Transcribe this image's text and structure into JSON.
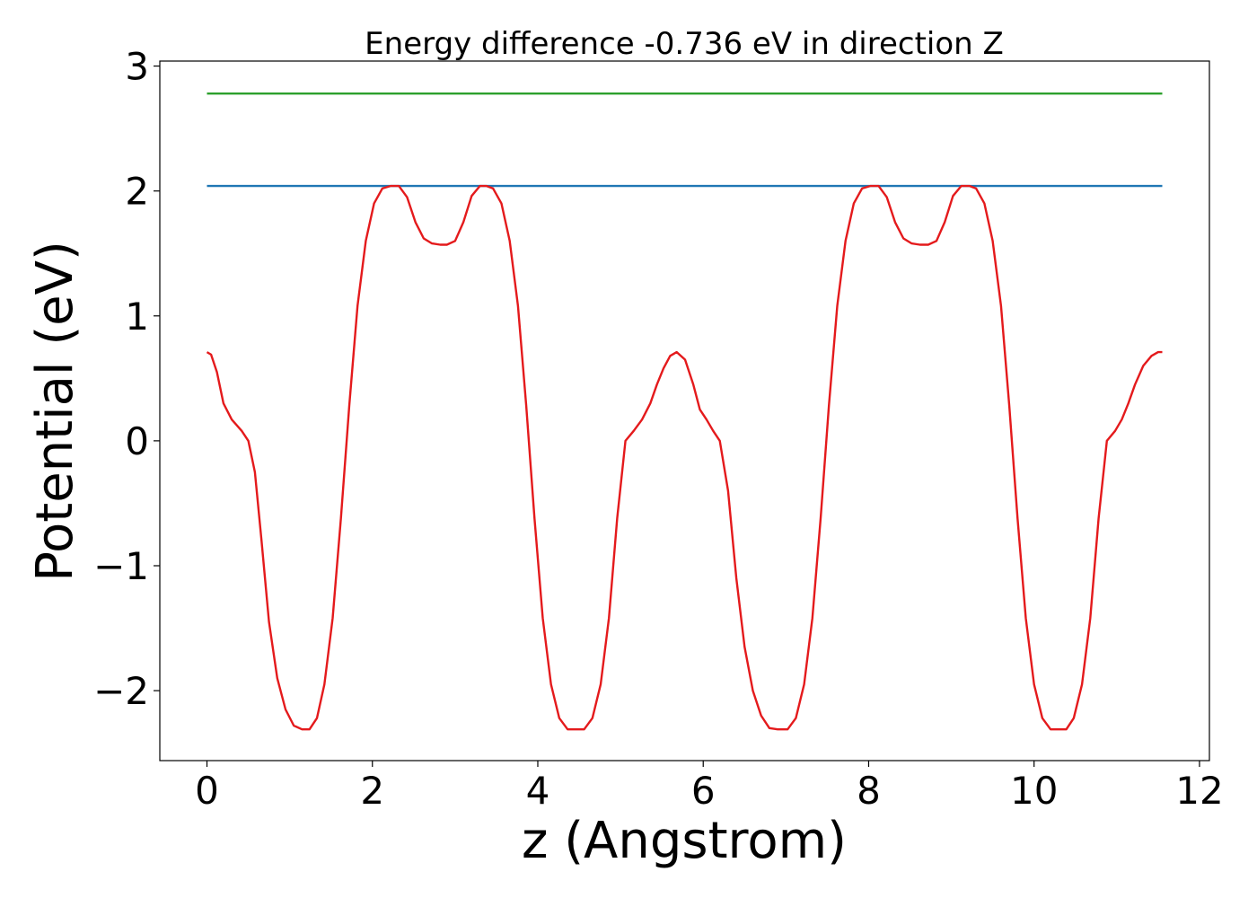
{
  "chart_data": {
    "type": "line",
    "title": "Energy difference -0.736 eV in direction Z",
    "xlabel": "z (Angstrom)",
    "ylabel": "Potential (eV)",
    "xlim": [
      -0.57,
      12.12
    ],
    "ylim": [
      -2.56,
      3.04
    ],
    "xticks": [
      0,
      2,
      4,
      6,
      8,
      10,
      12
    ],
    "xtick_labels": [
      "0",
      "2",
      "4",
      "6",
      "8",
      "10",
      "12"
    ],
    "yticks": [
      -2,
      -1,
      0,
      1,
      2,
      3
    ],
    "ytick_labels": [
      "−2",
      "−1",
      "0",
      "1",
      "2",
      "3"
    ],
    "grid": false,
    "series": [
      {
        "color": "#2ca02c",
        "x": [
          0,
          11.55
        ],
        "y": [
          2.78,
          2.78
        ]
      },
      {
        "color": "#1f77b4",
        "x": [
          0,
          11.55
        ],
        "y": [
          2.04,
          2.04
        ]
      },
      {
        "color": "#e41a1c",
        "x": [
          0,
          0.05,
          0.12,
          0.2,
          0.3,
          0.42,
          0.5,
          0.58,
          0.66,
          0.75,
          0.85,
          0.95,
          1.05,
          1.15,
          1.24,
          1.33,
          1.42,
          1.52,
          1.62,
          1.72,
          1.82,
          1.92,
          2.02,
          2.12,
          2.22,
          2.32,
          2.42,
          2.52,
          2.62,
          2.72,
          2.82,
          2.9,
          3.0,
          3.1,
          3.2,
          3.3,
          3.38,
          3.46,
          3.56,
          3.66,
          3.76,
          3.86,
          3.96,
          4.06,
          4.16,
          4.26,
          4.36,
          4.46,
          4.56,
          4.66,
          4.76,
          4.86,
          4.96,
          5.06,
          5.16,
          5.26,
          5.36,
          5.44,
          5.52,
          5.6,
          5.68,
          5.78,
          5.88,
          5.96,
          6.04,
          6.12,
          6.2,
          6.3,
          6.4,
          6.5,
          6.6,
          6.7,
          6.8,
          6.9,
          7.02,
          7.12,
          7.22,
          7.32,
          7.42,
          7.52,
          7.62,
          7.72,
          7.82,
          7.92,
          8.02,
          8.12,
          8.22,
          8.32,
          8.42,
          8.52,
          8.62,
          8.72,
          8.82,
          8.92,
          9.02,
          9.12,
          9.22,
          9.3,
          9.4,
          9.5,
          9.6,
          9.7,
          9.8,
          9.9,
          10.0,
          10.1,
          10.2,
          10.3,
          10.39,
          10.48,
          10.58,
          10.68,
          10.78,
          10.88,
          10.98,
          11.06,
          11.14,
          11.22,
          11.32,
          11.42,
          11.5,
          11.55
        ],
        "y": [
          0.71,
          0.69,
          0.55,
          0.3,
          0.17,
          0.08,
          0.0,
          -0.25,
          -0.8,
          -1.45,
          -1.9,
          -2.15,
          -2.28,
          -2.31,
          -2.31,
          -2.22,
          -1.95,
          -1.42,
          -0.62,
          0.28,
          1.08,
          1.6,
          1.9,
          2.02,
          2.04,
          2.04,
          1.95,
          1.75,
          1.62,
          1.58,
          1.57,
          1.57,
          1.6,
          1.75,
          1.96,
          2.04,
          2.04,
          2.02,
          1.9,
          1.6,
          1.08,
          0.28,
          -0.62,
          -1.42,
          -1.95,
          -2.22,
          -2.31,
          -2.31,
          -2.31,
          -2.22,
          -1.95,
          -1.42,
          -0.62,
          0.0,
          0.08,
          0.17,
          0.3,
          0.45,
          0.58,
          0.68,
          0.71,
          0.65,
          0.45,
          0.25,
          0.17,
          0.08,
          0.0,
          -0.4,
          -1.1,
          -1.65,
          -2.0,
          -2.2,
          -2.3,
          -2.31,
          -2.31,
          -2.22,
          -1.95,
          -1.42,
          -0.62,
          0.28,
          1.08,
          1.6,
          1.9,
          2.02,
          2.04,
          2.04,
          1.95,
          1.75,
          1.62,
          1.58,
          1.57,
          1.57,
          1.6,
          1.75,
          1.96,
          2.04,
          2.04,
          2.02,
          1.9,
          1.6,
          1.08,
          0.28,
          -0.62,
          -1.42,
          -1.95,
          -2.22,
          -2.31,
          -2.31,
          -2.31,
          -2.22,
          -1.95,
          -1.42,
          -0.62,
          0.0,
          0.08,
          0.17,
          0.3,
          0.45,
          0.6,
          0.68,
          0.71,
          0.71
        ]
      }
    ]
  }
}
